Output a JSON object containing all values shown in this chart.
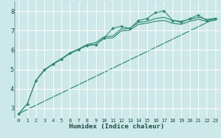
{
  "background_color": "#cde8e8",
  "grid_color": "#b0d8d8",
  "line_color": "#2e8b72",
  "xlabel": "Humidex (Indice chaleur)",
  "ylim": [
    2.5,
    8.5
  ],
  "xlim": [
    -0.5,
    23.5
  ],
  "yticks": [
    3,
    4,
    5,
    6,
    7,
    8
  ],
  "xticks": [
    0,
    1,
    2,
    3,
    4,
    5,
    6,
    7,
    8,
    9,
    10,
    11,
    12,
    13,
    14,
    15,
    16,
    17,
    18,
    19,
    20,
    21,
    22,
    23
  ],
  "line1_x": [
    0,
    1,
    2,
    3,
    4,
    5,
    6,
    7,
    8,
    9,
    10,
    11,
    12,
    13,
    14,
    15,
    16,
    17,
    18,
    19,
    20,
    21,
    22,
    23
  ],
  "line1_y": [
    2.72,
    3.22,
    4.42,
    4.98,
    5.25,
    5.52,
    5.82,
    6.02,
    6.22,
    6.27,
    6.62,
    7.12,
    7.22,
    7.1,
    7.52,
    7.62,
    7.92,
    8.02,
    7.52,
    7.42,
    7.62,
    7.8,
    7.52,
    7.62
  ],
  "line2_x": [
    0,
    1,
    2,
    3,
    4,
    5,
    6,
    7,
    8,
    9,
    10,
    11,
    12,
    13,
    14,
    15,
    16,
    17,
    18,
    19,
    20,
    21,
    22,
    23
  ],
  "line2_y": [
    2.72,
    3.22,
    4.42,
    4.98,
    5.28,
    5.55,
    5.85,
    6.05,
    6.28,
    6.38,
    6.68,
    6.72,
    7.08,
    7.12,
    7.42,
    7.48,
    7.62,
    7.68,
    7.52,
    7.48,
    7.58,
    7.68,
    7.58,
    7.62
  ],
  "line3_x": [
    2,
    3,
    4,
    5,
    6,
    7,
    8,
    9,
    10,
    11,
    12,
    13,
    14,
    15,
    16,
    17,
    18,
    19,
    20,
    21,
    22,
    23
  ],
  "line3_y": [
    4.42,
    4.95,
    5.28,
    5.55,
    5.82,
    6.02,
    6.25,
    6.28,
    6.6,
    6.62,
    6.98,
    7.02,
    7.32,
    7.38,
    7.48,
    7.52,
    7.38,
    7.32,
    7.48,
    7.58,
    7.48,
    7.53
  ],
  "line4_x": [
    0,
    23
  ],
  "line4_y": [
    2.72,
    7.62
  ]
}
